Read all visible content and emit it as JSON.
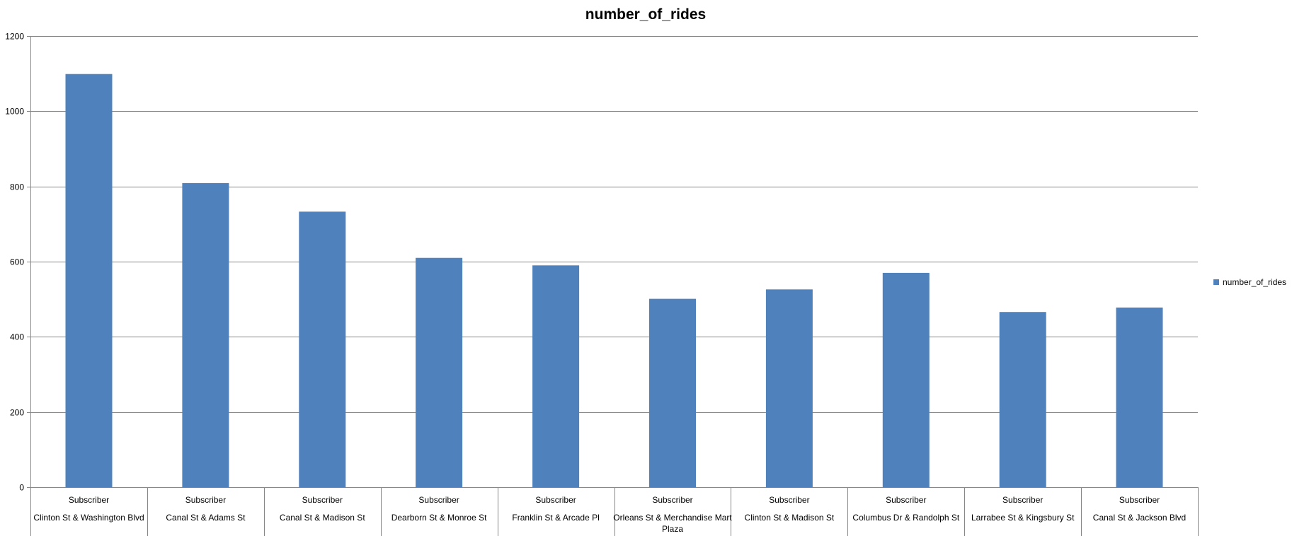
{
  "chart_data": {
    "type": "bar",
    "title": "number_of_rides",
    "xlabel": "",
    "ylabel": "",
    "ylim": [
      0,
      1200
    ],
    "yticks": [
      0,
      200,
      400,
      600,
      800,
      1000,
      1200
    ],
    "grid": true,
    "legend_position": "right",
    "categories": [
      {
        "group": "Subscriber",
        "label": "Clinton St & Washington Blvd"
      },
      {
        "group": "Subscriber",
        "label": "Canal St & Adams St"
      },
      {
        "group": "Subscriber",
        "label": "Canal St & Madison St"
      },
      {
        "group": "Subscriber",
        "label": "Dearborn St & Monroe St"
      },
      {
        "group": "Subscriber",
        "label": "Franklin St & Arcade Pl"
      },
      {
        "group": "Subscriber",
        "label": "Orleans St & Merchandise Mart Plaza"
      },
      {
        "group": "Subscriber",
        "label": "Clinton St & Madison St"
      },
      {
        "group": "Subscriber",
        "label": "Columbus Dr & Randolph St"
      },
      {
        "group": "Subscriber",
        "label": "Larrabee St & Kingsbury St"
      },
      {
        "group": "Subscriber",
        "label": "Canal St & Jackson Blvd"
      }
    ],
    "series": [
      {
        "name": "number_of_rides",
        "color": "#4F81BD",
        "values": [
          1099,
          809,
          733,
          610,
          590,
          501,
          526,
          570,
          466,
          478
        ]
      }
    ]
  }
}
